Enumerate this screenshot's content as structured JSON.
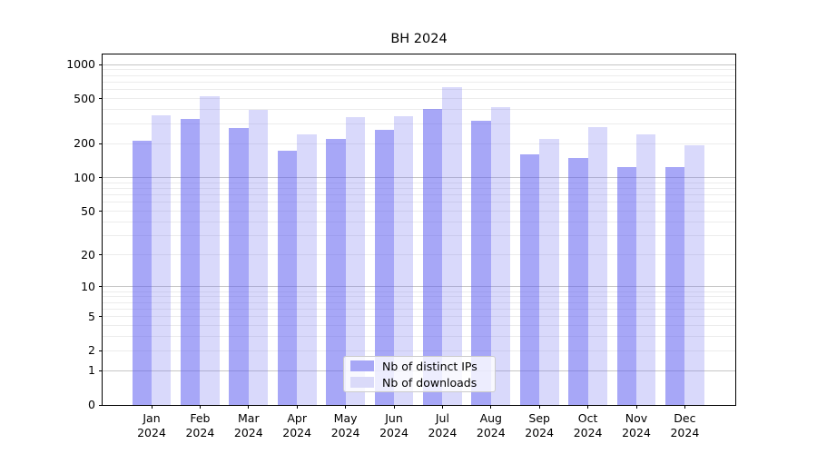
{
  "chart_data": {
    "type": "bar",
    "title": "BH 2024",
    "categories": [
      "Jan 2024",
      "Feb 2024",
      "Mar 2024",
      "Apr 2024",
      "May 2024",
      "Jun 2024",
      "Jul 2024",
      "Aug 2024",
      "Sep 2024",
      "Oct 2024",
      "Nov 2024",
      "Dec 2024"
    ],
    "series": [
      {
        "key": "ips",
        "name": "Nb of distinct IPs",
        "color": "rgba(95,95,240,0.55)",
        "legend_color": "#a7a7f6",
        "values": [
          213,
          334,
          278,
          173,
          222,
          267,
          406,
          318,
          161,
          149,
          124,
          124
        ]
      },
      {
        "key": "downloads",
        "name": "Nb of downloads",
        "color": "rgba(120,120,240,0.28)",
        "legend_color": "#dadaf9",
        "values": [
          357,
          527,
          400,
          241,
          342,
          352,
          632,
          419,
          222,
          281,
          240,
          194
        ]
      }
    ],
    "yscale": "log1p",
    "y_ticks": [
      0,
      1,
      2,
      5,
      10,
      20,
      50,
      100,
      200,
      500,
      1000
    ],
    "ylim": [
      0,
      1230
    ],
    "xlabel": "",
    "ylabel": "",
    "grid": true,
    "legend_position": "lower center",
    "axis_color": "#000000",
    "grid_major_color": "#c6c6c6",
    "grid_minor_color": "#ececec"
  }
}
